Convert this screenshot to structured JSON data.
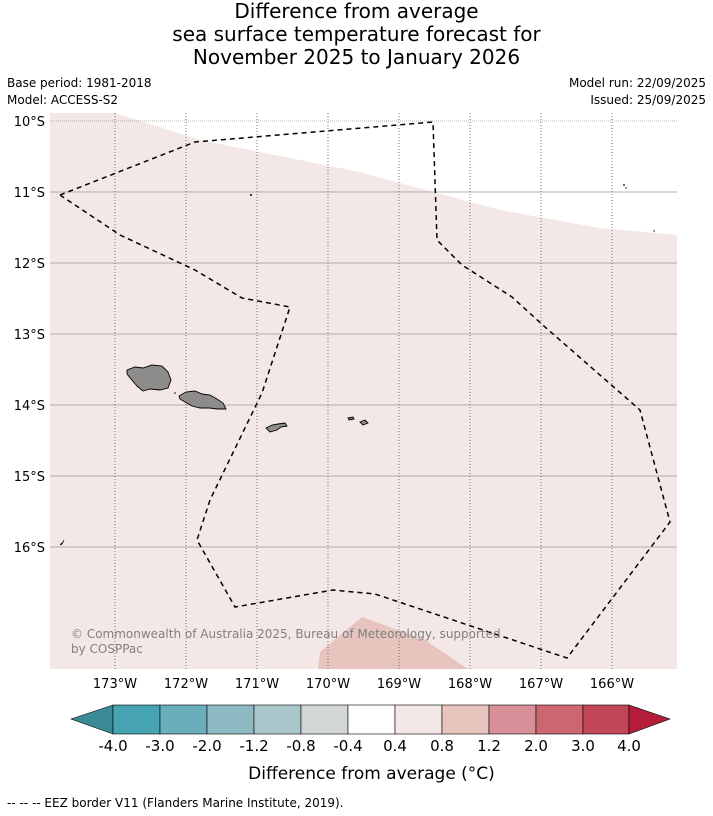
{
  "title": {
    "line1": "Difference from average",
    "line2": "sea surface temperature forecast for",
    "line3": "November 2025 to January 2026"
  },
  "meta": {
    "base_period": "Base period: 1981-2018",
    "model": "Model: ACCESS-S2",
    "model_run": "Model run: 22/09/2025",
    "issued": "Issued: 25/09/2025"
  },
  "map": {
    "lat_labels": [
      "10°S",
      "11°S",
      "12°S",
      "13°S",
      "14°S",
      "15°S",
      "16°S"
    ],
    "lon_labels": [
      "173°W",
      "172°W",
      "171°W",
      "170°W",
      "169°W",
      "168°W",
      "167°W",
      "166°W"
    ],
    "copyright_line1": "© Commonwealth of Australia 2025, Bureau of Meteorology, supported",
    "copyright_line2": "by COSPPac",
    "colors": {
      "anomaly_0_4_to_0_8": "#f4e8e6",
      "anomaly_0_8_to_1_2": "#e8c4be",
      "land": "#8e8c8b",
      "eez_border": "#000000"
    }
  },
  "colorbar": {
    "labels": [
      "-4.0",
      "-3.0",
      "-2.0",
      "-1.2",
      "-0.8",
      "-0.4",
      "0.4",
      "0.8",
      "1.2",
      "2.0",
      "3.0",
      "4.0"
    ],
    "colors": [
      "#3d8a97",
      "#45a3b2",
      "#6aadbb",
      "#8ebac4",
      "#a9c7cb",
      "#d3d6d7",
      "#ffffff",
      "#f4e8e6",
      "#e8c4be",
      "#d88f97",
      "#cc6671",
      "#c24558",
      "#b41e3b"
    ],
    "title": "Difference from average (°C)"
  },
  "footer": "--  --  -- EEZ border V11 (Flanders Marine Institute, 2019)."
}
